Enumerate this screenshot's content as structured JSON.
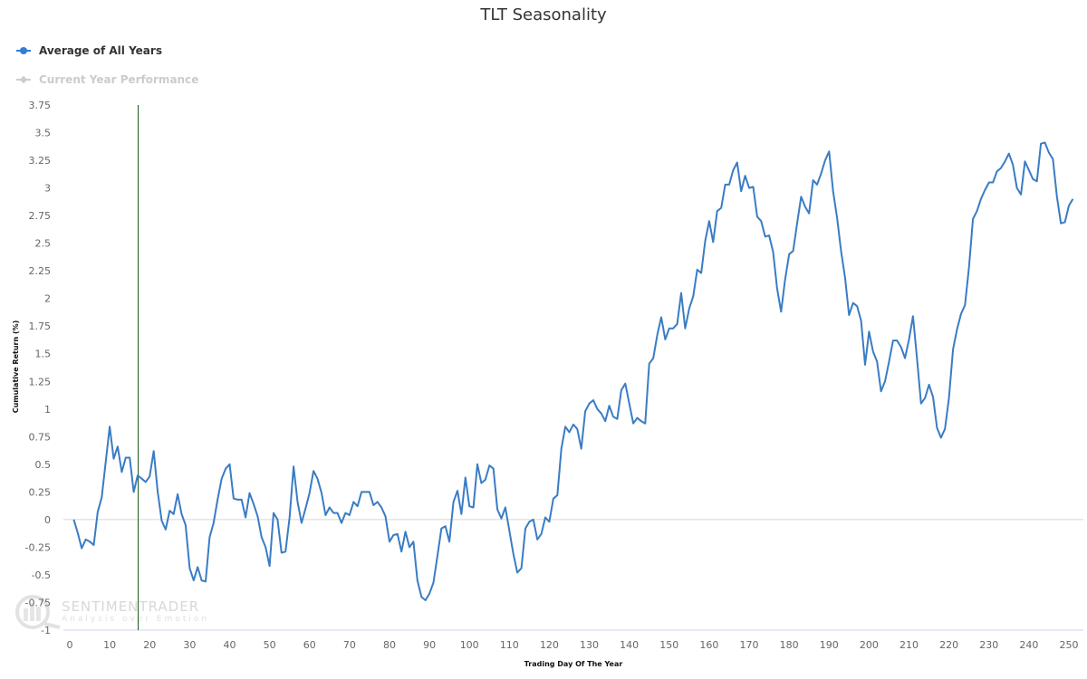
{
  "title": "TLT Seasonality",
  "legend": [
    {
      "label": "Average of All Years",
      "color": "#2f7ed8",
      "active": true,
      "symbol": "circle-icon"
    },
    {
      "label": "Current Year Performance",
      "color": "#cccccc",
      "active": false,
      "symbol": "diamond-icon"
    }
  ],
  "watermark": {
    "line1": "SENTIMENTRADER",
    "line2": "Analysis over Emotion"
  },
  "colors": {
    "series": "#3a7cc4",
    "marker_line": "#1a5c1a",
    "zero_line": "#d8d8d8",
    "axis_line": "#ccd6eb"
  },
  "chart_data": {
    "type": "line",
    "title": "TLT Seasonality",
    "xlabel": "Trading Day Of The Year",
    "ylabel": "Cumulative Return (%)",
    "xlim": [
      0,
      252
    ],
    "ylim": [
      -1,
      3.75
    ],
    "x_ticks": [
      "0",
      "10",
      "20",
      "30",
      "40",
      "50",
      "60",
      "70",
      "80",
      "90",
      "100",
      "110",
      "120",
      "130",
      "140",
      "150",
      "160",
      "170",
      "180",
      "190",
      "200",
      "210",
      "220",
      "230",
      "240",
      "250"
    ],
    "y_ticks": [
      "3.75",
      "3.5",
      "3.25",
      "3",
      "2.75",
      "2.5",
      "2.25",
      "2",
      "1.75",
      "1.5",
      "1.25",
      "1",
      "0.75",
      "0.5",
      "0.25",
      "0",
      "-0.25",
      "-0.5",
      "-0.75",
      "-1"
    ],
    "grid": false,
    "legend_position": "top-left",
    "current_day_marker": 17,
    "series": [
      {
        "name": "Average of All Years",
        "x_start": 1,
        "values": [
          0.0,
          -0.12,
          -0.26,
          -0.18,
          -0.2,
          -0.23,
          0.07,
          0.2,
          0.52,
          0.84,
          0.55,
          0.66,
          0.43,
          0.56,
          0.56,
          0.25,
          0.4,
          0.37,
          0.34,
          0.39,
          0.62,
          0.25,
          -0.01,
          -0.09,
          0.08,
          0.05,
          0.23,
          0.05,
          -0.05,
          -0.44,
          -0.55,
          -0.43,
          -0.55,
          -0.56,
          -0.16,
          -0.03,
          0.18,
          0.37,
          0.46,
          0.5,
          0.19,
          0.18,
          0.18,
          0.02,
          0.24,
          0.14,
          0.03,
          -0.16,
          -0.25,
          -0.42,
          0.06,
          0.0,
          -0.3,
          -0.29,
          0.02,
          0.48,
          0.16,
          -0.03,
          0.1,
          0.24,
          0.44,
          0.37,
          0.24,
          0.04,
          0.11,
          0.06,
          0.06,
          -0.03,
          0.06,
          0.04,
          0.16,
          0.12,
          0.25,
          0.25,
          0.25,
          0.13,
          0.16,
          0.11,
          0.03,
          -0.2,
          -0.14,
          -0.13,
          -0.29,
          -0.11,
          -0.25,
          -0.2,
          -0.55,
          -0.7,
          -0.73,
          -0.67,
          -0.57,
          -0.33,
          -0.08,
          -0.06,
          -0.2,
          0.16,
          0.26,
          0.05,
          0.38,
          0.12,
          0.11,
          0.5,
          0.33,
          0.36,
          0.49,
          0.46,
          0.09,
          0.01,
          0.11,
          -0.1,
          -0.31,
          -0.48,
          -0.44,
          -0.08,
          -0.02,
          0.0,
          -0.18,
          -0.13,
          0.02,
          -0.02,
          0.19,
          0.22,
          0.64,
          0.84,
          0.79,
          0.86,
          0.82,
          0.64,
          0.98,
          1.05,
          1.08,
          1.0,
          0.96,
          0.89,
          1.03,
          0.93,
          0.91,
          1.17,
          1.23,
          1.05,
          0.87,
          0.92,
          0.89,
          0.87,
          1.41,
          1.46,
          1.67,
          1.83,
          1.63,
          1.73,
          1.73,
          1.77,
          2.05,
          1.73,
          1.91,
          2.02,
          2.26,
          2.23,
          2.52,
          2.7,
          2.51,
          2.79,
          2.82,
          3.03,
          3.03,
          3.16,
          3.23,
          2.97,
          3.11,
          3.0,
          3.01,
          2.74,
          2.7,
          2.56,
          2.57,
          2.42,
          2.09,
          1.88,
          2.17,
          2.4,
          2.43,
          2.68,
          2.92,
          2.83,
          2.77,
          3.07,
          3.03,
          3.13,
          3.25,
          3.33,
          2.97,
          2.73,
          2.43,
          2.19,
          1.85,
          1.96,
          1.93,
          1.8,
          1.4,
          1.7,
          1.52,
          1.43,
          1.16,
          1.25,
          1.43,
          1.62,
          1.62,
          1.56,
          1.46,
          1.63,
          1.84,
          1.46,
          1.05,
          1.1,
          1.22,
          1.11,
          0.83,
          0.74,
          0.82,
          1.1,
          1.54,
          1.72,
          1.86,
          1.94,
          2.28,
          2.72,
          2.79,
          2.9,
          2.98,
          3.05,
          3.05,
          3.15,
          3.18,
          3.24,
          3.31,
          3.21,
          3.0,
          2.94,
          3.24,
          3.16,
          3.08,
          3.06,
          3.4,
          3.41,
          3.32,
          3.26,
          2.92,
          2.68,
          2.69,
          2.84,
          2.9
        ]
      },
      {
        "name": "Current Year Performance",
        "visible": false,
        "values": []
      }
    ]
  }
}
